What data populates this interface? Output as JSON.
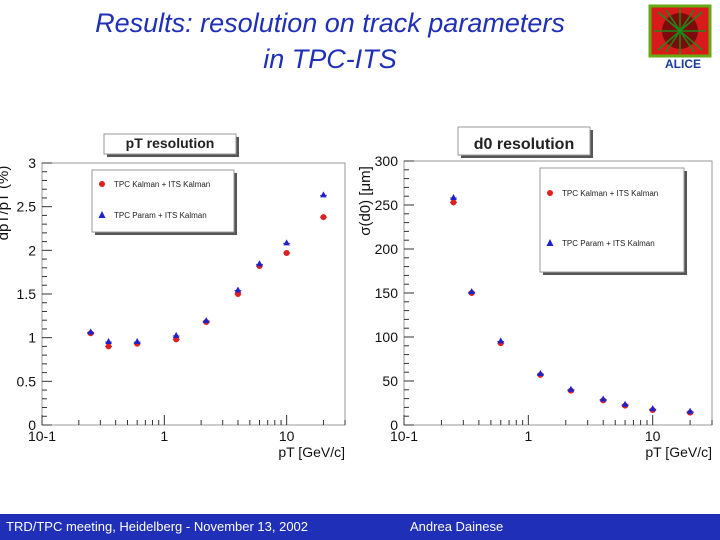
{
  "title_line1": "Results: resolution on track parameters",
  "title_line2": "in TPC-ITS",
  "logo_text": "ALICE",
  "footer": {
    "left": "TRD/TPC meeting, Heidelberg - November 13, 2002",
    "right": "Andrea Dainese"
  },
  "colors": {
    "title": "#1f2fb8",
    "footer_bg": "#1f2fb8",
    "kalman": "#e02020",
    "param": "#2020d0"
  },
  "chart_data": [
    {
      "type": "scatter",
      "title": "pT resolution",
      "xlabel": "pT [GeV/c]",
      "ylabel": "dpT/pT (%)",
      "xscale": "log",
      "xlim": [
        0.1,
        30
      ],
      "ylim": [
        0,
        3
      ],
      "xticks": [
        "10-1",
        "1",
        "10"
      ],
      "yticks": [
        "0",
        "0.5",
        "1",
        "1.5",
        "2",
        "2.5",
        "3"
      ],
      "legend_position": "top-left",
      "series": [
        {
          "name": "TPC Kalman + ITS Kalman",
          "marker": "circle",
          "x": [
            0.25,
            0.35,
            0.6,
            1.25,
            2.2,
            4.0,
            6.0,
            10.0,
            20.0
          ],
          "y": [
            1.05,
            0.9,
            0.93,
            0.98,
            1.18,
            1.5,
            1.82,
            1.97,
            2.38
          ]
        },
        {
          "name": "TPC Param + ITS Kalman",
          "marker": "triangle",
          "x": [
            0.25,
            0.35,
            0.6,
            1.25,
            2.2,
            4.0,
            6.0,
            10.0,
            20.0
          ],
          "y": [
            1.06,
            0.95,
            0.95,
            1.02,
            1.19,
            1.54,
            1.84,
            2.08,
            2.63
          ]
        }
      ]
    },
    {
      "type": "scatter",
      "title": "d0 resolution",
      "xlabel": "pT [GeV/c]",
      "ylabel": "σ(d0) [μm]",
      "xscale": "log",
      "xlim": [
        0.1,
        30
      ],
      "ylim": [
        0,
        300
      ],
      "xticks": [
        "10-1",
        "1",
        "10"
      ],
      "yticks": [
        "0",
        "50",
        "100",
        "150",
        "200",
        "250",
        "300"
      ],
      "legend_position": "top-right",
      "series": [
        {
          "name": "TPC Kalman + ITS Kalman",
          "marker": "circle",
          "x": [
            0.25,
            0.35,
            0.6,
            1.25,
            2.2,
            4.0,
            6.0,
            10.0,
            20.0
          ],
          "y": [
            253,
            150,
            93,
            57,
            39,
            28,
            22,
            17,
            14
          ]
        },
        {
          "name": "TPC Param + ITS Kalman",
          "marker": "triangle",
          "x": [
            0.25,
            0.35,
            0.6,
            1.25,
            2.2,
            4.0,
            6.0,
            10.0,
            20.0
          ],
          "y": [
            258,
            151,
            95,
            58,
            40,
            29,
            23,
            18,
            15
          ]
        }
      ]
    }
  ]
}
